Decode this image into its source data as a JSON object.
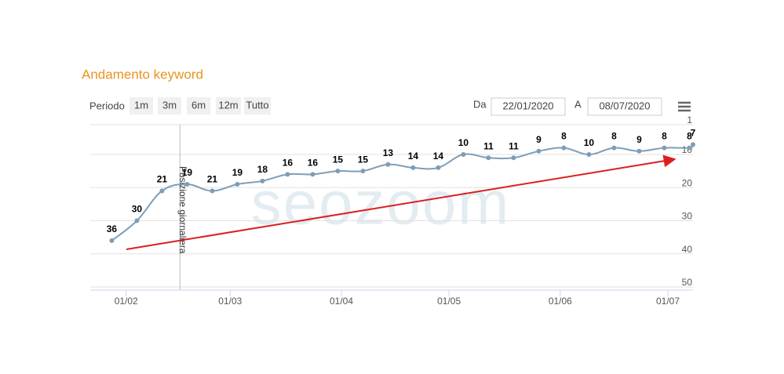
{
  "header": {
    "title": "Andamento keyword"
  },
  "toolbar": {
    "period_label": "Periodo",
    "buttons": [
      "1m",
      "3m",
      "6m",
      "12m",
      "Tutto"
    ],
    "from_label": "Da",
    "from": "22/01/2020",
    "to_label": "A",
    "to": "08/07/2020"
  },
  "chart_data": {
    "type": "line",
    "watermark": "seozoom",
    "reversed_y": true,
    "color": "#7f9db6",
    "x": [
      "2020-01-28",
      "2020-02-04",
      "2020-02-11",
      "2020-02-18",
      "2020-02-25",
      "2020-03-03",
      "2020-03-10",
      "2020-03-17",
      "2020-03-24",
      "2020-03-31",
      "2020-04-07",
      "2020-04-14",
      "2020-04-21",
      "2020-04-28",
      "2020-05-05",
      "2020-05-12",
      "2020-05-19",
      "2020-05-26",
      "2020-06-02",
      "2020-06-09",
      "2020-06-16",
      "2020-06-23",
      "2020-06-30",
      "2020-07-07",
      "2020-07-08"
    ],
    "values": [
      36,
      30,
      21,
      19,
      21,
      19,
      18,
      16,
      16,
      15,
      15,
      13,
      14,
      14,
      10,
      11,
      11,
      9,
      8,
      10,
      8,
      9,
      8,
      8,
      7
    ],
    "xlim": [
      "2020-01-22",
      "2020-07-08"
    ],
    "xticks": [
      {
        "value": "2020-02-01",
        "label": "01/02"
      },
      {
        "value": "2020-03-01",
        "label": "01/03"
      },
      {
        "value": "2020-04-01",
        "label": "01/04"
      },
      {
        "value": "2020-05-01",
        "label": "01/05"
      },
      {
        "value": "2020-06-01",
        "label": "01/06"
      },
      {
        "value": "2020-07-01",
        "label": "01/07"
      }
    ],
    "ylim": [
      1,
      50
    ],
    "yticks": [
      1,
      10,
      20,
      30,
      40,
      50
    ],
    "grid": true,
    "annotations": [
      {
        "x": "2020-02-16",
        "label": "Posizione giornaliera"
      }
    ]
  }
}
